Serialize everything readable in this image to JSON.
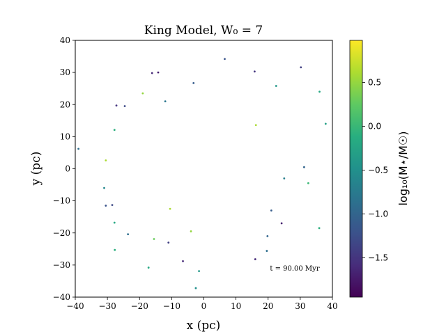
{
  "chart_data": {
    "type": "scatter",
    "title": "King Model, W₀ = 7",
    "xlabel": "x (pc)",
    "ylabel": "y (pc)",
    "xlim": [
      -40,
      40
    ],
    "ylim": [
      -40,
      40
    ],
    "xticks": [
      "−40",
      "−30",
      "−20",
      "−10",
      "0",
      "10",
      "20",
      "30",
      "40"
    ],
    "yticks": [
      "−40",
      "−30",
      "−20",
      "−10",
      "0",
      "10",
      "20",
      "30",
      "40"
    ],
    "grid": false,
    "annotation": "t = 90.00 Myr",
    "colorbar": {
      "label": "log₁₀(M⋆/M☉)",
      "range": [
        -1.95,
        0.98
      ],
      "ticks": [
        "−1.5",
        "−1.0",
        "−0.5",
        "0.0",
        "0.5"
      ],
      "colormap": "viridis"
    },
    "points_note": "Representative sample of plotted stars (x, y in pc; c = log10 mass)",
    "points": [
      {
        "x": -39,
        "y": 6.2,
        "c": -0.9
      },
      {
        "x": -30.5,
        "y": 2.6,
        "c": 0.6
      },
      {
        "x": -27.8,
        "y": 12.1,
        "c": -0.1
      },
      {
        "x": -27.2,
        "y": 19.7,
        "c": -1.5
      },
      {
        "x": -24.6,
        "y": 19.5,
        "c": -1.3
      },
      {
        "x": -16.1,
        "y": 29.8,
        "c": -1.6
      },
      {
        "x": -14.2,
        "y": 30.0,
        "c": -1.7
      },
      {
        "x": -3.2,
        "y": 26.7,
        "c": -1.1
      },
      {
        "x": 6.5,
        "y": 34.2,
        "c": -1.2
      },
      {
        "x": 15.8,
        "y": 30.3,
        "c": -1.5
      },
      {
        "x": 30.2,
        "y": 31.6,
        "c": -1.4
      },
      {
        "x": 36.0,
        "y": 24.0,
        "c": -0.2
      },
      {
        "x": 37.9,
        "y": 14.0,
        "c": -0.3
      },
      {
        "x": 22.5,
        "y": 25.8,
        "c": -0.4
      },
      {
        "x": -19.0,
        "y": 23.5,
        "c": 0.5
      },
      {
        "x": -12.0,
        "y": 21.0,
        "c": -0.8
      },
      {
        "x": -31.0,
        "y": -6.0,
        "c": -0.6
      },
      {
        "x": -30.5,
        "y": -11.5,
        "c": -1.2
      },
      {
        "x": -28.5,
        "y": -11.3,
        "c": -1.3
      },
      {
        "x": -27.8,
        "y": -16.8,
        "c": -0.2
      },
      {
        "x": -27.7,
        "y": -25.3,
        "c": -0.1
      },
      {
        "x": -23.6,
        "y": -20.4,
        "c": -0.9
      },
      {
        "x": -17.2,
        "y": -30.8,
        "c": -0.2
      },
      {
        "x": -15.5,
        "y": -21.9,
        "c": 0.3
      },
      {
        "x": -11.0,
        "y": -23.0,
        "c": -1.4
      },
      {
        "x": -6.5,
        "y": -28.8,
        "c": -1.6
      },
      {
        "x": -1.5,
        "y": -31.9,
        "c": -0.4
      },
      {
        "x": -2.5,
        "y": -37.2,
        "c": -0.5
      },
      {
        "x": 16.0,
        "y": -28.2,
        "c": -1.6
      },
      {
        "x": 19.6,
        "y": -25.6,
        "c": -0.9
      },
      {
        "x": 19.8,
        "y": -21.0,
        "c": -1.0
      },
      {
        "x": 24.2,
        "y": -17.0,
        "c": -1.7
      },
      {
        "x": 35.9,
        "y": -18.5,
        "c": -0.1
      },
      {
        "x": 32.5,
        "y": -4.5,
        "c": 0.0
      },
      {
        "x": 31.2,
        "y": 0.5,
        "c": -1.0
      },
      {
        "x": 25.0,
        "y": -3.0,
        "c": -0.7
      },
      {
        "x": 21.0,
        "y": -13.0,
        "c": -1.1
      },
      {
        "x": -4.0,
        "y": -19.5,
        "c": 0.5
      },
      {
        "x": -10.5,
        "y": -12.5,
        "c": 0.6
      },
      {
        "x": 16.2,
        "y": 13.6,
        "c": 0.6
      }
    ]
  }
}
